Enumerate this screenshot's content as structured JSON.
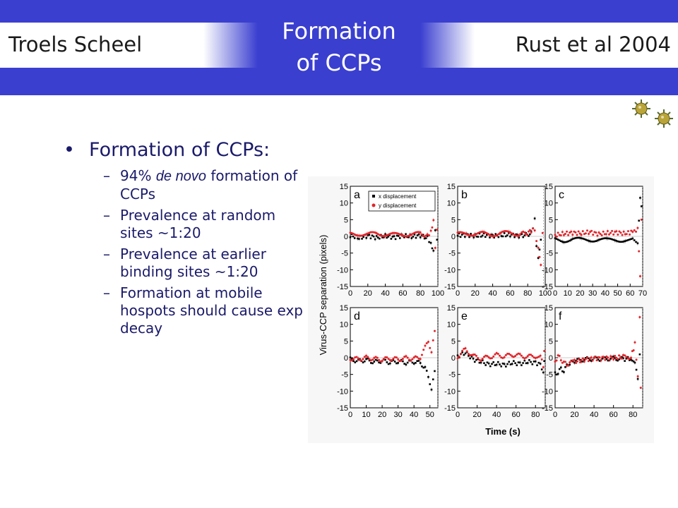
{
  "header": {
    "author": "Troels Scheel",
    "title_line1": "Formation",
    "title_line2": "of CCPs",
    "citation": "Rust et al 2004"
  },
  "colors": {
    "bar_blue": "#3a3fd0",
    "text_dark_blue": "#1a1a6a",
    "series_x": "#000000",
    "series_y": "#e0242a"
  },
  "icons": [
    "virus-icon",
    "virus-icon"
  ],
  "bullets": {
    "main": "Formation of CCPs:",
    "sub": [
      {
        "prefix": "94% ",
        "italic": "de novo",
        "rest": " formation of CCPs"
      },
      {
        "text": "Prevalence at random sites ~1:20"
      },
      {
        "text": "Prevalence at earlier binding sites ~1:20"
      },
      {
        "text": "Formation at mobile hospots should cause exp decay"
      }
    ]
  },
  "chart_data": {
    "type": "scatter",
    "ylabel": "Virus-CCP separation (pixels)",
    "xlabel": "Time (s)",
    "legend": {
      "placement": "top-left of panel a",
      "entries": [
        "x displacement",
        "y displacement"
      ]
    },
    "ylim": [
      -15,
      15
    ],
    "yticks": [
      15,
      10,
      5,
      0,
      -5,
      -10,
      -15
    ],
    "panels": [
      {
        "label": "a",
        "xlim": [
          0,
          100
        ],
        "xticks": [
          0,
          20,
          40,
          60,
          80,
          100
        ],
        "end": 100,
        "series": [
          {
            "name": "x displacement",
            "points": [
              [
                0,
                0.3
              ],
              [
                10,
                -0.5
              ],
              [
                20,
                0.2
              ],
              [
                30,
                -0.4
              ],
              [
                40,
                0.1
              ],
              [
                50,
                -0.3
              ],
              [
                60,
                0.2
              ],
              [
                70,
                -0.1
              ],
              [
                80,
                0.3
              ],
              [
                88,
                -0.5
              ],
              [
                92,
                -2
              ],
              [
                95,
                -4
              ],
              [
                97,
                2
              ],
              [
                99,
                -1
              ]
            ]
          },
          {
            "name": "y displacement",
            "points": [
              [
                0,
                0.6
              ],
              [
                10,
                0.8
              ],
              [
                20,
                0.5
              ],
              [
                30,
                0.9
              ],
              [
                40,
                0.6
              ],
              [
                50,
                0.4
              ],
              [
                60,
                0.7
              ],
              [
                70,
                0.5
              ],
              [
                80,
                0.8
              ],
              [
                88,
                0.3
              ],
              [
                92,
                1.5
              ],
              [
                95,
                5
              ],
              [
                97,
                -3
              ],
              [
                99,
                2
              ]
            ]
          }
        ]
      },
      {
        "label": "b",
        "xlim": [
          0,
          100
        ],
        "xticks": [
          0,
          20,
          40,
          60,
          80,
          100
        ],
        "end": 98,
        "series": [
          {
            "name": "x displacement",
            "points": [
              [
                0,
                0.3
              ],
              [
                10,
                0.5
              ],
              [
                20,
                0.1
              ],
              [
                30,
                0.4
              ],
              [
                40,
                0.2
              ],
              [
                50,
                0.3
              ],
              [
                60,
                0.5
              ],
              [
                70,
                0.2
              ],
              [
                78,
                0.4
              ],
              [
                84,
                1
              ],
              [
                88,
                5
              ],
              [
                90,
                -3
              ],
              [
                92,
                -6
              ],
              [
                95,
                -1
              ]
            ]
          },
          {
            "name": "y displacement",
            "points": [
              [
                0,
                0.6
              ],
              [
                10,
                0.9
              ],
              [
                20,
                0.7
              ],
              [
                30,
                0.8
              ],
              [
                40,
                0.6
              ],
              [
                50,
                0.9
              ],
              [
                60,
                1.1
              ],
              [
                70,
                0.7
              ],
              [
                78,
                0.9
              ],
              [
                84,
                1.5
              ],
              [
                88,
                2
              ],
              [
                92,
                -4
              ],
              [
                95,
                -8
              ],
              [
                97,
                1
              ]
            ]
          }
        ]
      },
      {
        "label": "c",
        "xlim": [
          0,
          70
        ],
        "xticks": [
          0,
          10,
          20,
          30,
          40,
          50,
          60,
          70
        ],
        "end": 70,
        "series": [
          {
            "name": "x displacement",
            "points": [
              [
                0,
                -1
              ],
              [
                7,
                -1.2
              ],
              [
                14,
                -0.8
              ],
              [
                21,
                -1.1
              ],
              [
                28,
                -1
              ],
              [
                35,
                -0.9
              ],
              [
                42,
                -1.2
              ],
              [
                49,
                -1
              ],
              [
                56,
                -1.1
              ],
              [
                62,
                -0.8
              ],
              [
                66,
                -1.5
              ],
              [
                68,
                11
              ],
              [
                69,
                9
              ]
            ]
          },
          {
            "name": "y displacement",
            "points": [
              [
                0,
                0.4
              ],
              [
                7,
                0.8
              ],
              [
                14,
                1.1
              ],
              [
                21,
                0.9
              ],
              [
                28,
                1.3
              ],
              [
                35,
                0.7
              ],
              [
                42,
                1
              ],
              [
                49,
                1.2
              ],
              [
                56,
                0.8
              ],
              [
                62,
                1.4
              ],
              [
                66,
                2
              ],
              [
                68,
                -12
              ],
              [
                69,
                5
              ]
            ]
          }
        ]
      },
      {
        "label": "d",
        "xlim": [
          0,
          55
        ],
        "xticks": [
          0,
          10,
          20,
          30,
          40,
          50
        ],
        "end": 55,
        "series": [
          {
            "name": "x displacement",
            "points": [
              [
                0,
                -0.5
              ],
              [
                5,
                -1
              ],
              [
                10,
                -0.7
              ],
              [
                15,
                -1.3
              ],
              [
                20,
                -0.9
              ],
              [
                25,
                -1.4
              ],
              [
                30,
                -1.1
              ],
              [
                35,
                -1.5
              ],
              [
                40,
                -1.2
              ],
              [
                44,
                -1.6
              ],
              [
                47,
                -3
              ],
              [
                49,
                -6
              ],
              [
                51,
                -9
              ],
              [
                53,
                -4
              ]
            ]
          },
          {
            "name": "y displacement",
            "points": [
              [
                0,
                -0.2
              ],
              [
                5,
                -0.4
              ],
              [
                10,
                0
              ],
              [
                15,
                -0.3
              ],
              [
                20,
                -0.6
              ],
              [
                25,
                -0.2
              ],
              [
                30,
                -0.5
              ],
              [
                35,
                -0.1
              ],
              [
                40,
                -0.3
              ],
              [
                44,
                0.2
              ],
              [
                47,
                3
              ],
              [
                49,
                5
              ],
              [
                51,
                2
              ],
              [
                53,
                8
              ]
            ]
          }
        ]
      },
      {
        "label": "e",
        "xlim": [
          0,
          90
        ],
        "xticks": [
          0,
          20,
          40,
          60,
          80
        ],
        "end": 90,
        "series": [
          {
            "name": "x displacement",
            "points": [
              [
                0,
                0.5
              ],
              [
                8,
                1.5
              ],
              [
                16,
                -0.5
              ],
              [
                24,
                -1.2
              ],
              [
                32,
                -2
              ],
              [
                40,
                -1.8
              ],
              [
                48,
                -2.2
              ],
              [
                56,
                -1.5
              ],
              [
                64,
                -1.8
              ],
              [
                72,
                -1.2
              ],
              [
                80,
                -1.5
              ],
              [
                85,
                -2
              ],
              [
                88,
                -4
              ],
              [
                89,
                -1
              ]
            ]
          },
          {
            "name": "y displacement",
            "points": [
              [
                0,
                0.4
              ],
              [
                8,
                2.5
              ],
              [
                16,
                0.5
              ],
              [
                24,
                -0.3
              ],
              [
                32,
                0.2
              ],
              [
                40,
                0.8
              ],
              [
                48,
                0.4
              ],
              [
                56,
                0.9
              ],
              [
                64,
                0.6
              ],
              [
                72,
                0.3
              ],
              [
                80,
                0.5
              ],
              [
                85,
                0.8
              ],
              [
                88,
                -3
              ],
              [
                89,
                2
              ]
            ]
          }
        ]
      },
      {
        "label": "f",
        "xlim": [
          0,
          90
        ],
        "xticks": [
          0,
          20,
          40,
          60,
          80
        ],
        "end": 90,
        "series": [
          {
            "name": "x displacement",
            "points": [
              [
                0,
                -4
              ],
              [
                3,
                -5
              ],
              [
                6,
                -3
              ],
              [
                9,
                -4
              ],
              [
                12,
                -2.5
              ],
              [
                15,
                -1.5
              ],
              [
                20,
                -1
              ],
              [
                30,
                -0.5
              ],
              [
                40,
                -0.3
              ],
              [
                50,
                -0.4
              ],
              [
                60,
                -0.2
              ],
              [
                70,
                -0.4
              ],
              [
                78,
                -0.3
              ],
              [
                82,
                -2
              ],
              [
                85,
                -6
              ],
              [
                87,
                1
              ]
            ]
          },
          {
            "name": "y displacement",
            "points": [
              [
                0,
                -1
              ],
              [
                3,
                0.5
              ],
              [
                6,
                -0.5
              ],
              [
                9,
                -1.5
              ],
              [
                12,
                -2
              ],
              [
                15,
                -1.8
              ],
              [
                20,
                -1.2
              ],
              [
                30,
                -0.6
              ],
              [
                40,
                -0.2
              ],
              [
                50,
                -0.1
              ],
              [
                60,
                0
              ],
              [
                70,
                0.2
              ],
              [
                78,
                0.3
              ],
              [
                82,
                4
              ],
              [
                85,
                -5
              ],
              [
                87,
                12
              ],
              [
                88,
                -9
              ]
            ]
          }
        ]
      }
    ]
  }
}
